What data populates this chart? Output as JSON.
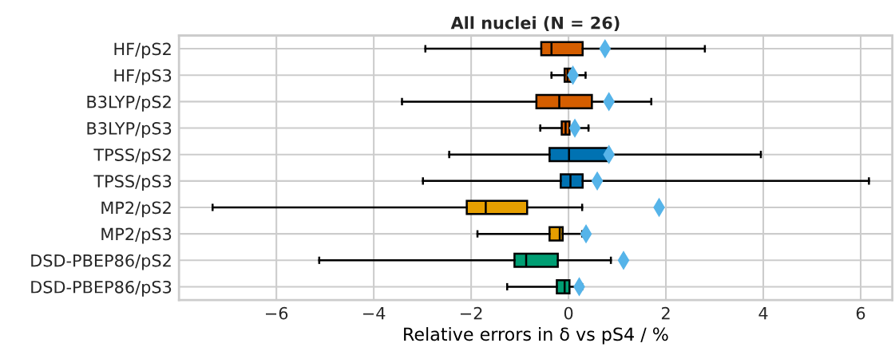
{
  "chart_data": {
    "type": "box",
    "orientation": "horizontal",
    "title": "All nuclei (N = 26)",
    "xlabel": "Relative errors in δ vs pS4 / %",
    "categories": [
      "HF/pS2",
      "HF/pS3",
      "B3LYP/pS2",
      "B3LYP/pS3",
      "TPSS/pS2",
      "TPSS/pS3",
      "MP2/pS2",
      "MP2/pS3",
      "DSD-PBEP86/pS2",
      "DSD-PBEP86/pS3"
    ],
    "colors": [
      "#d55e00",
      "#d55e00",
      "#d55e00",
      "#d55e00",
      "#0072b2",
      "#0072b2",
      "#e69f00",
      "#e69f00",
      "#009e73",
      "#009e73"
    ],
    "marker": "diamond",
    "boxes": [
      {
        "low": -2.94,
        "q1": -0.56,
        "median": -0.35,
        "q3": 0.29,
        "high": 2.8,
        "mean": 0.75
      },
      {
        "low": -0.35,
        "q1": -0.08,
        "median": -0.02,
        "q3": 0.07,
        "high": 0.35,
        "mean": 0.09
      },
      {
        "low": -3.42,
        "q1": -0.66,
        "median": -0.19,
        "q3": 0.48,
        "high": 1.7,
        "mean": 0.83
      },
      {
        "low": -0.58,
        "q1": -0.14,
        "median": -0.06,
        "q3": 0.02,
        "high": 0.41,
        "mean": 0.13
      },
      {
        "low": -2.45,
        "q1": -0.39,
        "median": 0.01,
        "q3": 0.8,
        "high": 3.95,
        "mean": 0.83
      },
      {
        "low": -2.99,
        "q1": -0.16,
        "median": 0.04,
        "q3": 0.29,
        "high": 6.17,
        "mean": 0.59
      },
      {
        "low": -7.31,
        "q1": -2.09,
        "median": -1.7,
        "q3": -0.85,
        "high": 0.28,
        "mean": 1.86
      },
      {
        "low": -1.87,
        "q1": -0.39,
        "median": -0.18,
        "q3": -0.12,
        "high": 0.28,
        "mean": 0.36
      },
      {
        "low": -5.12,
        "q1": -1.11,
        "median": -0.87,
        "q3": -0.22,
        "high": 0.87,
        "mean": 1.13
      },
      {
        "low": -1.26,
        "q1": -0.24,
        "median": -0.08,
        "q3": 0.02,
        "high": 0.28,
        "mean": 0.22
      }
    ],
    "xlim": [
      -8.0,
      6.65
    ],
    "xticks": [
      {
        "value": -6,
        "label": "−6"
      },
      {
        "value": -4,
        "label": "−4"
      },
      {
        "value": -2,
        "label": "−2"
      },
      0,
      2,
      4,
      6
    ],
    "grid": true
  }
}
